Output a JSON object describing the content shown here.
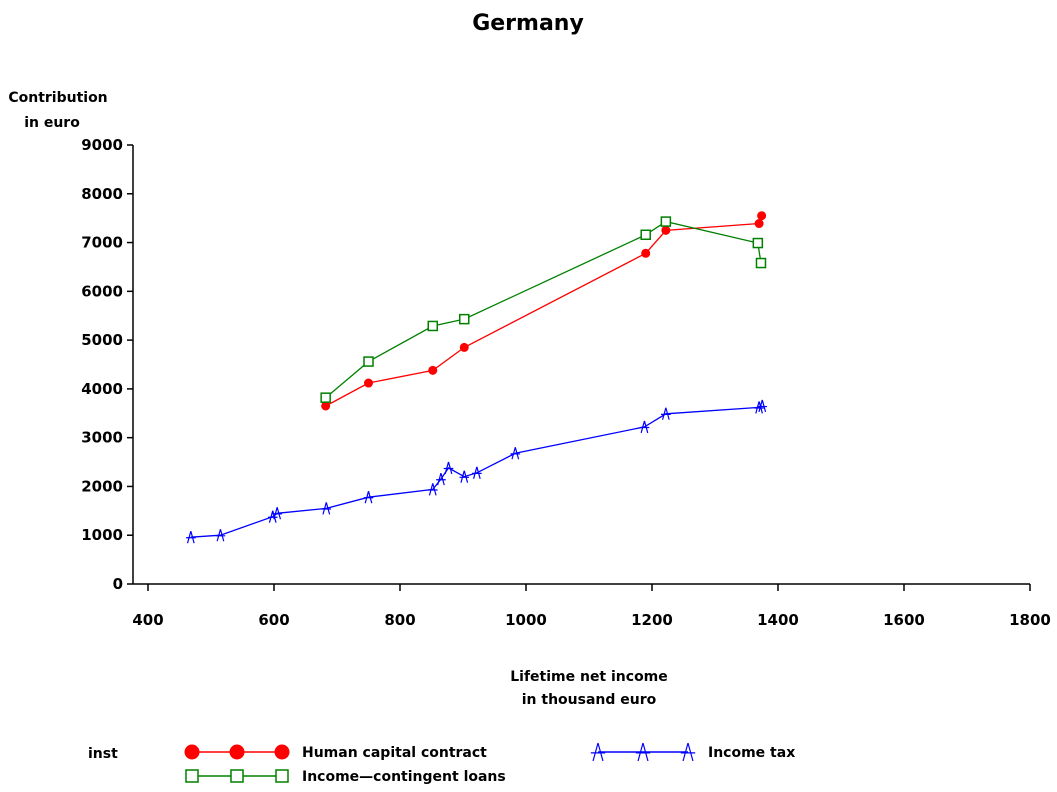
{
  "chart_data": {
    "type": "line",
    "title": "Germany",
    "ylabel": [
      "Contribution",
      "in euro"
    ],
    "xlabel": [
      "Lifetime net income",
      "in thousand euro"
    ],
    "xlim": [
      400,
      1800
    ],
    "ylim": [
      0,
      9000
    ],
    "xticks": [
      "400",
      "600",
      "800",
      "1000",
      "1200",
      "1400",
      "1600",
      "1800"
    ],
    "yticks": [
      "0",
      "1000",
      "2000",
      "3000",
      "4000",
      "5000",
      "6000",
      "7000",
      "8000",
      "9000"
    ],
    "legend_title": "inst",
    "legend_placement": "bottom",
    "grid": false,
    "series": [
      {
        "name": "Human capital contract",
        "color": "#ff0000",
        "marker": "filled-circle",
        "x": [
          682,
          750,
          852,
          902,
          1190,
          1222,
          1370,
          1374
        ],
        "y": [
          3650,
          4120,
          4380,
          4850,
          6780,
          7250,
          7390,
          7550
        ]
      },
      {
        "name": "Income—contingent loans",
        "color": "#008000",
        "marker": "open-square",
        "x": [
          682,
          750,
          852,
          902,
          1190,
          1222,
          1368,
          1373
        ],
        "y": [
          3820,
          4560,
          5290,
          5430,
          7160,
          7430,
          6990,
          6580
        ]
      },
      {
        "name": "Income tax",
        "color": "#0000ff",
        "marker": "star",
        "x": [
          468,
          515,
          598,
          605,
          683,
          750,
          852,
          865,
          877,
          902,
          922,
          983,
          1188,
          1222,
          1370,
          1375
        ],
        "y": [
          960,
          1000,
          1380,
          1450,
          1550,
          1780,
          1940,
          2150,
          2380,
          2200,
          2280,
          2680,
          3220,
          3490,
          3620,
          3650
        ]
      }
    ]
  }
}
